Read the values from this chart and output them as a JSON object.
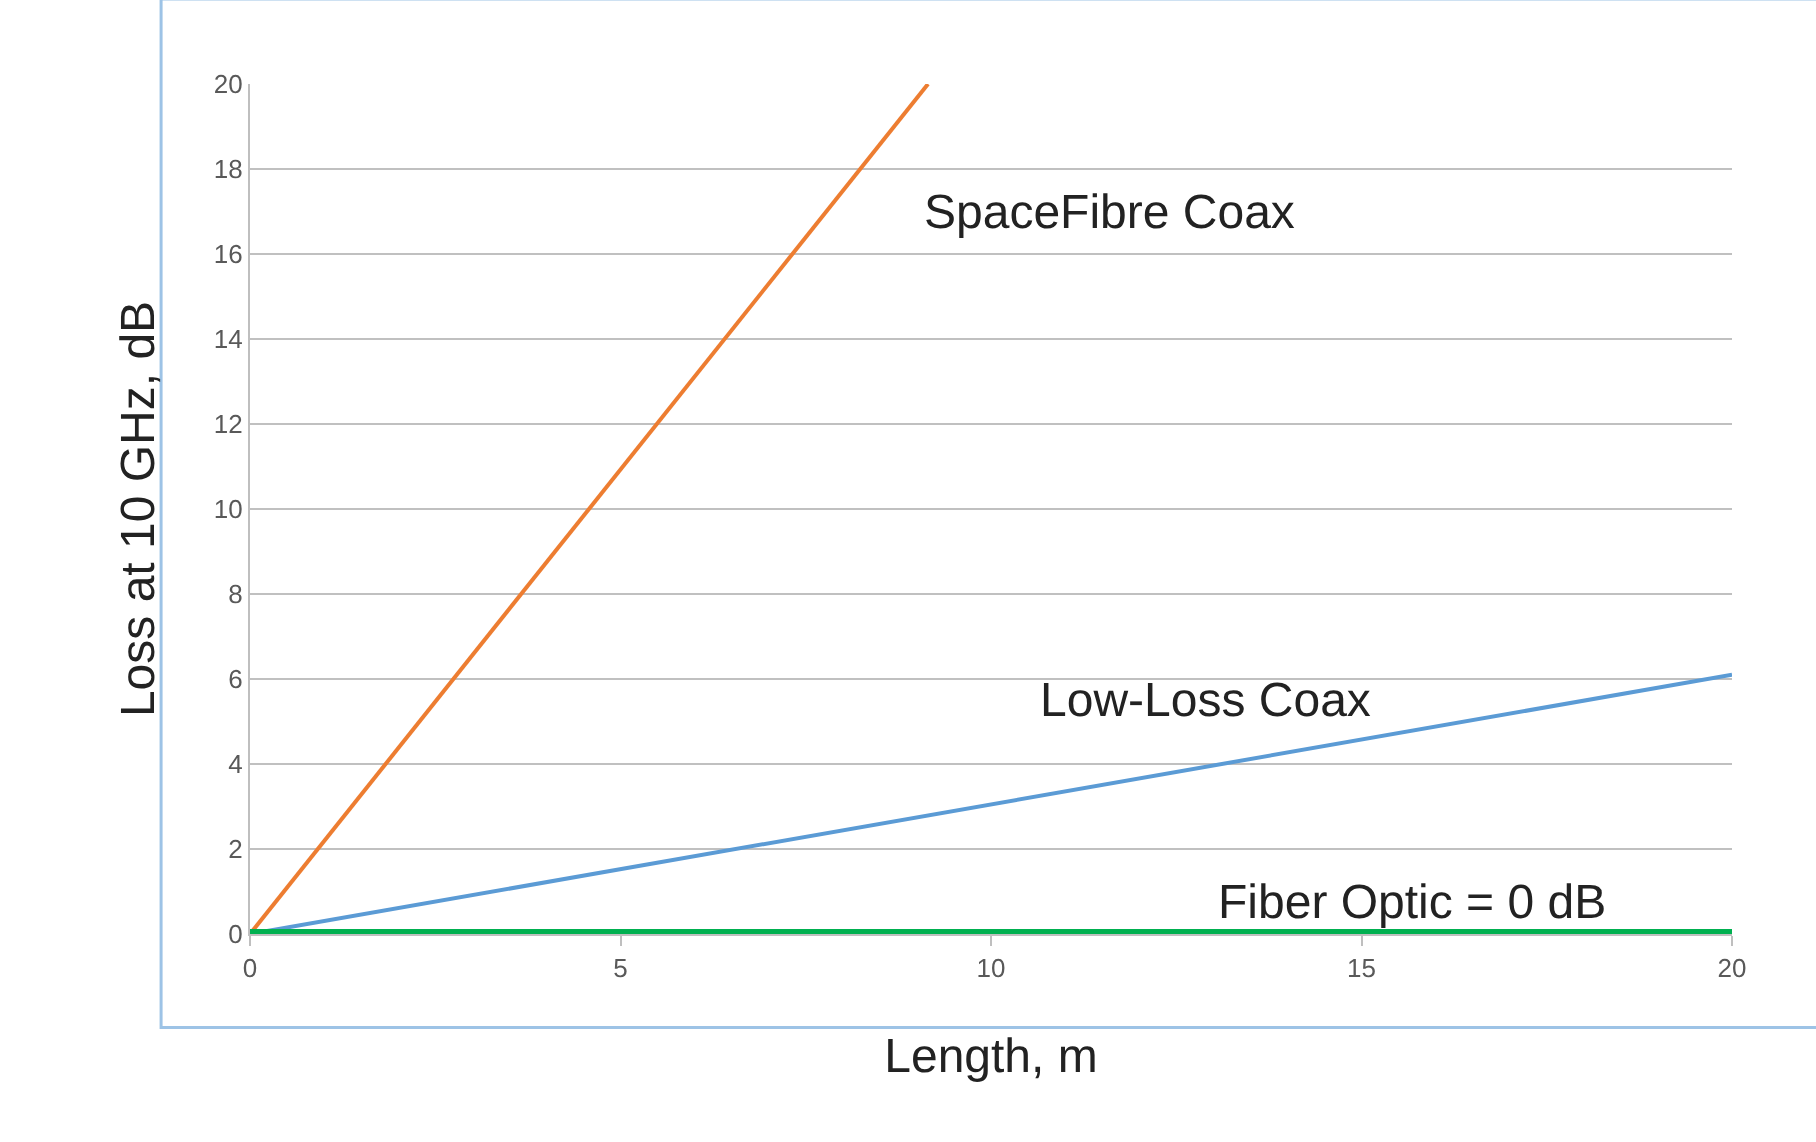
{
  "chart_data": {
    "type": "line",
    "xlabel": "Length, m",
    "ylabel": "Loss at 10 GHz, dB",
    "xlim": [
      0,
      20
    ],
    "xticks": [
      0,
      5,
      10,
      15,
      20
    ],
    "ylim": [
      0,
      20
    ],
    "yticks": [
      0,
      2,
      4,
      6,
      8,
      10,
      12,
      14,
      16,
      18,
      20
    ],
    "grid": "y",
    "legend": false,
    "marker": "none",
    "line_style": "solid",
    "series": [
      {
        "name": "SpaceFibre Coax",
        "color": "#ed7d31",
        "x": [
          0,
          9.15
        ],
        "values": [
          0,
          20
        ]
      },
      {
        "name": "Low-Loss Coax",
        "color": "#5b9bd5",
        "x": [
          0,
          20
        ],
        "values": [
          0,
          6.1
        ]
      },
      {
        "name": "Fiber Optic = 0 dB",
        "color": "#00b050",
        "x": [
          0,
          20
        ],
        "values": [
          0,
          0
        ]
      }
    ]
  }
}
